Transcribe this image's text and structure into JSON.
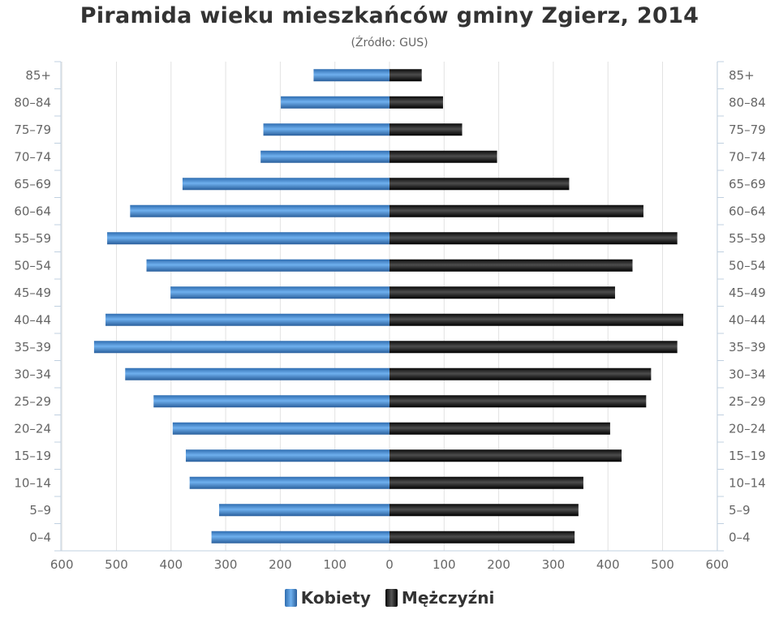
{
  "chart_data": {
    "type": "bar",
    "orientation": "horizontal",
    "layout": "population-pyramid",
    "title": "Piramida wieku mieszkańców gminy Zgierz, 2014",
    "subtitle": "(Źródło: GUS)",
    "categories": [
      "85+",
      "80–84",
      "75–79",
      "70–74",
      "65–69",
      "60–64",
      "55–59",
      "50–54",
      "45–49",
      "40–44",
      "35–39",
      "30–34",
      "25–29",
      "20–24",
      "15–19",
      "10–14",
      "5–9",
      "0–4"
    ],
    "series": [
      {
        "name": "Kobiety",
        "color": "#4a90d9",
        "side": "left",
        "values": [
          139,
          199,
          231,
          236,
          379,
          475,
          517,
          445,
          401,
          520,
          541,
          484,
          432,
          397,
          373,
          366,
          312,
          326
        ]
      },
      {
        "name": "Mężczyźni",
        "color": "#222222",
        "side": "right",
        "values": [
          59,
          98,
          133,
          197,
          329,
          465,
          527,
          445,
          413,
          538,
          527,
          479,
          470,
          404,
          425,
          355,
          346,
          339
        ]
      }
    ],
    "x_ticks": [
      600,
      500,
      400,
      300,
      200,
      100,
      0,
      100,
      200,
      300,
      400,
      500,
      600
    ],
    "xlim": [
      -600,
      600
    ],
    "grid": true,
    "legend": "bottom-center"
  }
}
